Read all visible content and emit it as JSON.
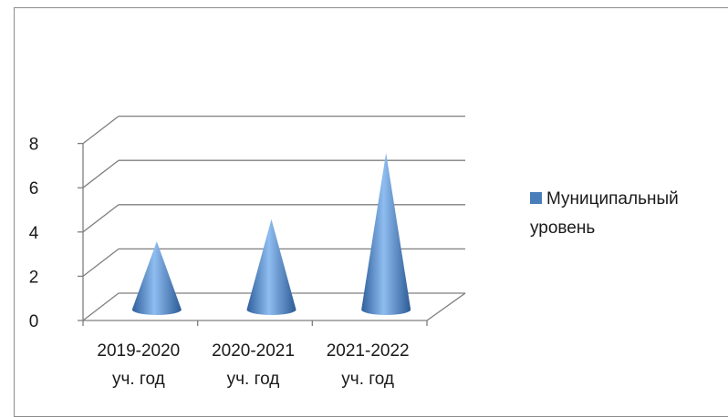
{
  "chart_data": {
    "type": "bar",
    "shape": "cone-3d",
    "categories": [
      "2019-2020 уч. год",
      "2020-2021 уч. год",
      "2021-2022 уч. год"
    ],
    "category_lines": [
      [
        "2019-2020",
        "уч. год"
      ],
      [
        "2020-2021",
        "уч. год"
      ],
      [
        "2021-2022",
        "уч. год"
      ]
    ],
    "series": [
      {
        "name": "Муниципальный уровень",
        "values": [
          3,
          4,
          7
        ]
      }
    ],
    "legend_lines": [
      "Муниципальный",
      "уровень"
    ],
    "ylim": [
      0,
      8
    ],
    "y_ticks": [
      "0",
      "2",
      "4",
      "6",
      "8"
    ],
    "grid": true,
    "legend_position": "right",
    "colors": {
      "series": "#4a7ebb",
      "grid": "#7f7f7f",
      "text": "#1a1a1a"
    }
  }
}
